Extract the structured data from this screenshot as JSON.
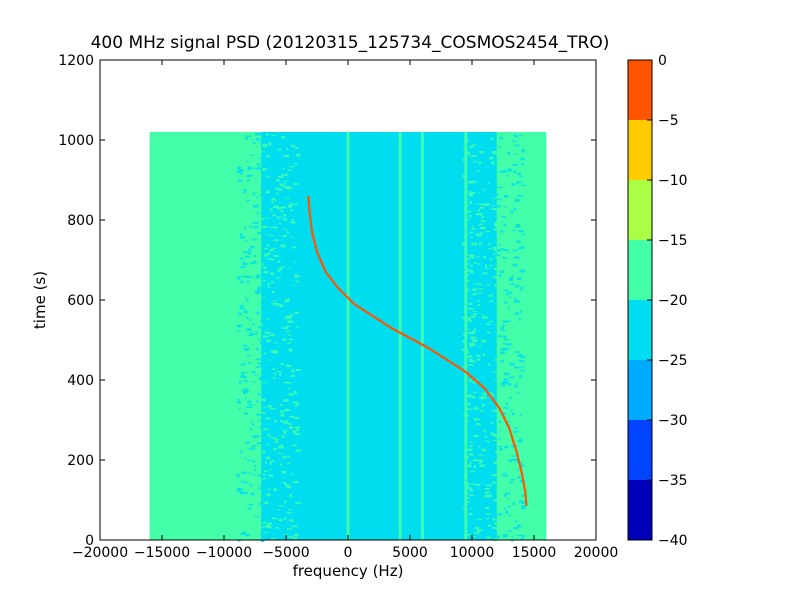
{
  "chart_data": {
    "type": "heatmap",
    "title": "400 MHz signal PSD (20120315_125734_COSMOS2454_TRO)",
    "xlabel": "frequency (Hz)",
    "ylabel": "time (s)",
    "xlim": [
      -20000,
      20000
    ],
    "ylim": [
      0,
      1200
    ],
    "xticks": [
      -20000,
      -15000,
      -10000,
      -5000,
      0,
      5000,
      10000,
      15000,
      20000
    ],
    "xtick_labels": [
      "−20000",
      "−15000",
      "−10000",
      "−5000",
      "0",
      "5000",
      "10000",
      "15000",
      "20000"
    ],
    "yticks": [
      0,
      200,
      400,
      600,
      800,
      1000,
      1200
    ],
    "ytick_labels": [
      "0",
      "200",
      "400",
      "600",
      "800",
      "1000",
      "1200"
    ],
    "data_extent": {
      "x": [
        -16000,
        16000
      ],
      "y": [
        0,
        1020
      ]
    },
    "background_level_dB": -20,
    "edge_level_dB": -17,
    "center_band_dB": -22,
    "center_band_x": [
      -7000,
      12000
    ],
    "vertical_lines_x_Hz": [
      -15500,
      0,
      4200,
      6000,
      9500
    ],
    "signal_trace": {
      "level_dB": -2,
      "points": [
        [
          -3200,
          860
        ],
        [
          -3100,
          820
        ],
        [
          -2900,
          770
        ],
        [
          -2500,
          720
        ],
        [
          -1800,
          670
        ],
        [
          -800,
          630
        ],
        [
          500,
          590
        ],
        [
          2000,
          560
        ],
        [
          3500,
          530
        ],
        [
          5000,
          505
        ],
        [
          6500,
          480
        ],
        [
          8000,
          450
        ],
        [
          9500,
          420
        ],
        [
          11000,
          380
        ],
        [
          12200,
          330
        ],
        [
          13000,
          280
        ],
        [
          13600,
          220
        ],
        [
          14000,
          170
        ],
        [
          14300,
          120
        ],
        [
          14400,
          85
        ]
      ]
    },
    "colorbar": {
      "levels": [
        -40,
        -35,
        -30,
        -25,
        -20,
        -15,
        -10,
        -5,
        0
      ],
      "tick_labels": [
        "−40",
        "−35",
        "−30",
        "−25",
        "−20",
        "−15",
        "−10",
        "−5",
        "0"
      ],
      "colors": [
        "#0000bb",
        "#0044ff",
        "#00aaff",
        "#00ddee",
        "#44ffaa",
        "#aaff44",
        "#ffcc00",
        "#ff5500",
        "#cc0000"
      ]
    }
  }
}
